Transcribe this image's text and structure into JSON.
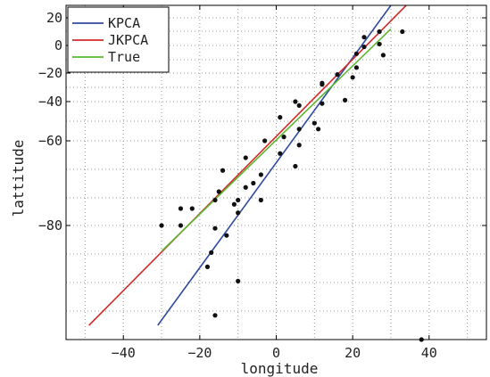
{
  "chart_data": {
    "type": "scatter",
    "xlabel": "longitude",
    "ylabel": "lattitude",
    "xlim": [
      -55,
      55
    ],
    "xticks": [
      -40,
      -20,
      0,
      20,
      40
    ],
    "xtick_labels": [
      "−40",
      "−20",
      "0",
      "20",
      "40"
    ],
    "yticks": [
      20,
      0,
      -20,
      -40,
      -60,
      -80
    ],
    "ytick_labels": [
      "20",
      "0",
      "−20",
      "−40",
      "−60",
      "−80"
    ],
    "y_scale": "nonlinear (tick spacing shrinks toward top)",
    "grid": true,
    "legend_position": "top-left",
    "points": [
      [
        -30,
        -80
      ],
      [
        -25,
        -76
      ],
      [
        -25,
        -80
      ],
      [
        -22,
        -76
      ],
      [
        -18,
        -109
      ],
      [
        -17,
        -99
      ],
      [
        -16,
        -143
      ],
      [
        -16,
        -82
      ],
      [
        -16,
        -74
      ],
      [
        -15,
        -72
      ],
      [
        -14,
        -67
      ],
      [
        -13,
        -87
      ],
      [
        -11,
        -75
      ],
      [
        -10,
        -74
      ],
      [
        -10,
        -77
      ],
      [
        -10,
        -119
      ],
      [
        -8,
        -71
      ],
      [
        -8,
        -64
      ],
      [
        -6,
        -70
      ],
      [
        -4,
        -74
      ],
      [
        -4,
        -68
      ],
      [
        -3,
        -60
      ],
      [
        1,
        -63
      ],
      [
        1,
        -48
      ],
      [
        2,
        -58
      ],
      [
        5,
        -66
      ],
      [
        5,
        -40
      ],
      [
        6,
        -54
      ],
      [
        6,
        -61
      ],
      [
        6,
        -42
      ],
      [
        10,
        -51
      ],
      [
        11,
        -54
      ],
      [
        12,
        -41
      ],
      [
        12,
        -28
      ],
      [
        12,
        -27
      ],
      [
        16,
        -21
      ],
      [
        18,
        -39
      ],
      [
        20,
        -23
      ],
      [
        21,
        -16
      ],
      [
        21,
        -6
      ],
      [
        23,
        -1
      ],
      [
        23,
        6
      ],
      [
        27,
        1
      ],
      [
        27,
        10
      ],
      [
        28,
        -7
      ],
      [
        33,
        10
      ],
      [
        38,
        -160
      ]
    ],
    "series": [
      {
        "name": "KPCA",
        "color": "#2f4aa0",
        "x": [
          -31,
          30
        ],
        "y": [
          -150,
          40
        ]
      },
      {
        "name": "JKPCA",
        "color": "#d42a2a",
        "x": [
          -49,
          34
        ],
        "y": [
          -150,
          40
        ]
      },
      {
        "name": "True",
        "color": "#5ab82e",
        "x": [
          -30,
          30
        ],
        "y": [
          -98,
          12
        ]
      }
    ],
    "point_color": "#111111"
  }
}
